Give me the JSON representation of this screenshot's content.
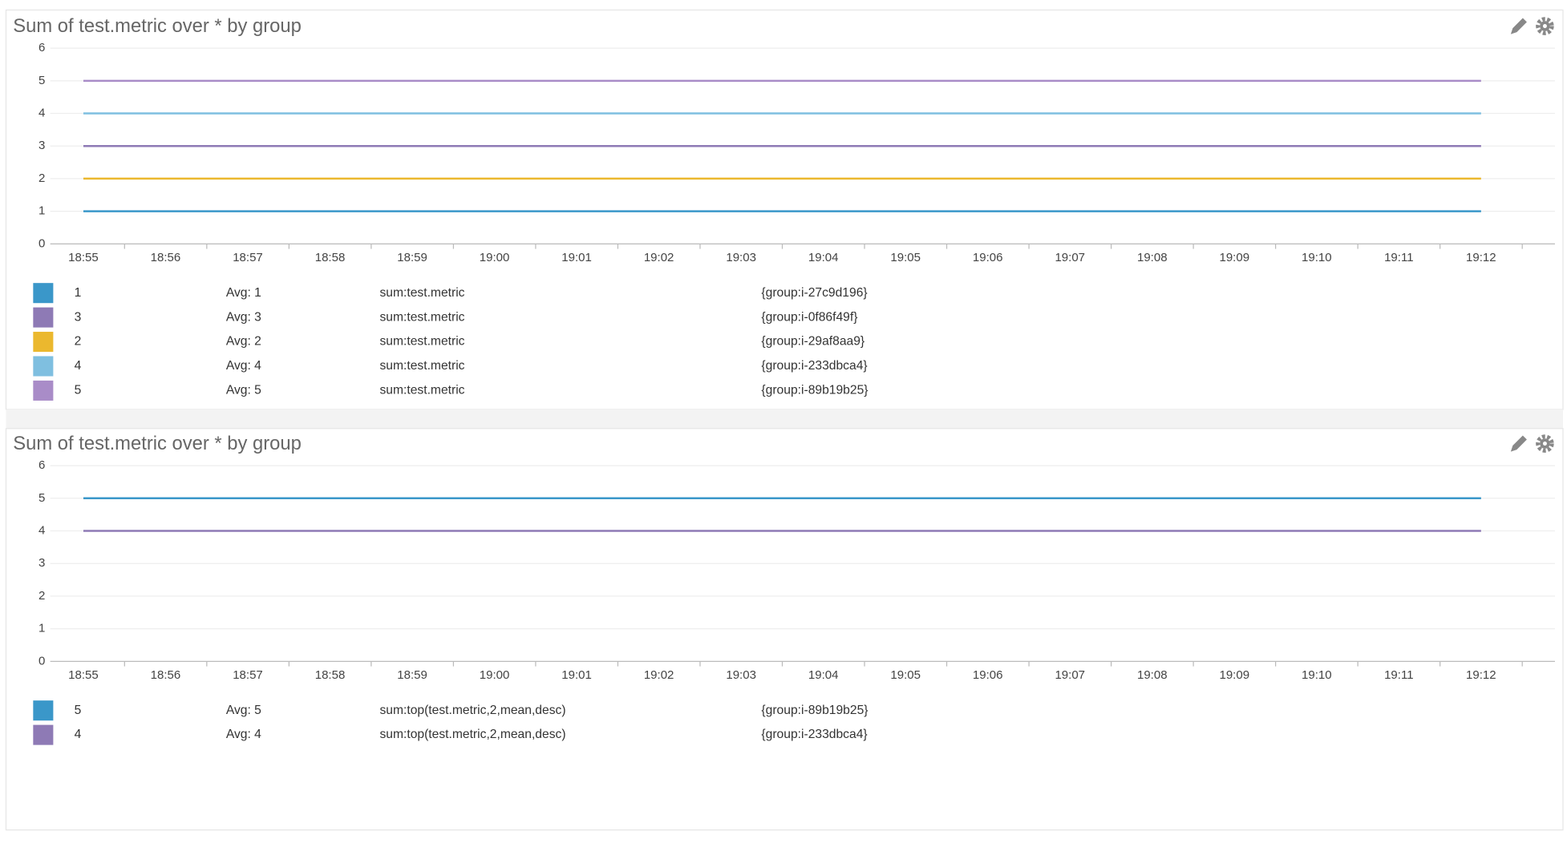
{
  "chart_data": [
    {
      "type": "line",
      "title": "Sum of test.metric over * by group",
      "categories": [
        "18:55",
        "18:56",
        "18:57",
        "18:58",
        "18:59",
        "19:00",
        "19:01",
        "19:02",
        "19:03",
        "19:04",
        "19:05",
        "19:06",
        "19:07",
        "19:08",
        "19:09",
        "19:10",
        "19:11",
        "19:12"
      ],
      "ylim": [
        0,
        6
      ],
      "yticks": [
        0,
        1,
        2,
        3,
        4,
        5,
        6
      ],
      "grid": true,
      "series": [
        {
          "name": "{group:i-27c9d196}",
          "query": "sum:test.metric",
          "avg_label": "Avg: 1",
          "color": "#3a97c9",
          "values": [
            1,
            1,
            1,
            1,
            1,
            1,
            1,
            1,
            1,
            1,
            1,
            1,
            1,
            1,
            1,
            1,
            1,
            1
          ]
        },
        {
          "name": "{group:i-0f86f49f}",
          "query": "sum:test.metric",
          "avg_label": "Avg: 3",
          "color": "#8e7ab5",
          "values": [
            3,
            3,
            3,
            3,
            3,
            3,
            3,
            3,
            3,
            3,
            3,
            3,
            3,
            3,
            3,
            3,
            3,
            3
          ]
        },
        {
          "name": "{group:i-29af8aa9}",
          "query": "sum:test.metric",
          "avg_label": "Avg: 2",
          "color": "#ebb82e",
          "values": [
            2,
            2,
            2,
            2,
            2,
            2,
            2,
            2,
            2,
            2,
            2,
            2,
            2,
            2,
            2,
            2,
            2,
            2
          ]
        },
        {
          "name": "{group:i-233dbca4}",
          "query": "sum:test.metric",
          "avg_label": "Avg: 4",
          "color": "#7fbfe0",
          "values": [
            4,
            4,
            4,
            4,
            4,
            4,
            4,
            4,
            4,
            4,
            4,
            4,
            4,
            4,
            4,
            4,
            4,
            4
          ]
        },
        {
          "name": "{group:i-89b19b25}",
          "query": "sum:test.metric",
          "avg_label": "Avg: 5",
          "color": "#a98cc8",
          "values": [
            5,
            5,
            5,
            5,
            5,
            5,
            5,
            5,
            5,
            5,
            5,
            5,
            5,
            5,
            5,
            5,
            5,
            5
          ]
        }
      ]
    },
    {
      "type": "line",
      "title": "Sum of test.metric over * by group",
      "categories": [
        "18:55",
        "18:56",
        "18:57",
        "18:58",
        "18:59",
        "19:00",
        "19:01",
        "19:02",
        "19:03",
        "19:04",
        "19:05",
        "19:06",
        "19:07",
        "19:08",
        "19:09",
        "19:10",
        "19:11",
        "19:12"
      ],
      "ylim": [
        0,
        6
      ],
      "yticks": [
        0,
        1,
        2,
        3,
        4,
        5,
        6
      ],
      "grid": true,
      "series": [
        {
          "name": "{group:i-89b19b25}",
          "query": "sum:top(test.metric,2,mean,desc)",
          "avg_label": "Avg: 5",
          "color": "#3a97c9",
          "values": [
            5,
            5,
            5,
            5,
            5,
            5,
            5,
            5,
            5,
            5,
            5,
            5,
            5,
            5,
            5,
            5,
            5,
            5
          ]
        },
        {
          "name": "{group:i-233dbca4}",
          "query": "sum:top(test.metric,2,mean,desc)",
          "avg_label": "Avg: 4",
          "color": "#8e7ab5",
          "values": [
            4,
            4,
            4,
            4,
            4,
            4,
            4,
            4,
            4,
            4,
            4,
            4,
            4,
            4,
            4,
            4,
            4,
            4
          ]
        }
      ]
    }
  ]
}
